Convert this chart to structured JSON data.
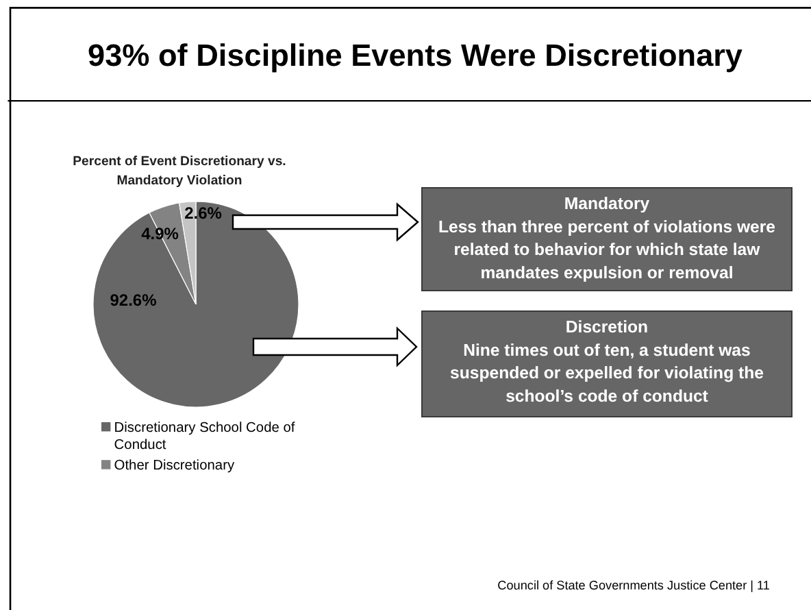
{
  "chart_data": {
    "type": "pie",
    "title": "93% of Discipline Events Were Discretionary",
    "subtitle": "Percent of Event Discretionary vs. Mandatory Violation",
    "categories": [
      "Discretionary School Code of Conduct",
      "Other Discretionary",
      null
    ],
    "values": [
      92.6,
      4.9,
      2.6
    ],
    "value_labels": [
      "92.6%",
      "4.9%",
      "2.6%"
    ],
    "colors": [
      "#676767",
      "#838383",
      "#c4c4c4"
    ],
    "legend": "bottom",
    "annotations": [
      "Mandatory\nLess than three percent of violations were related to behavior for which state law mandates expulsion or removal",
      "Discretion\nNine times out of ten, a student was suspended or expelled for violating the school’s code of conduct",
      "Council of State Governments Justice Center | 11"
    ]
  }
}
